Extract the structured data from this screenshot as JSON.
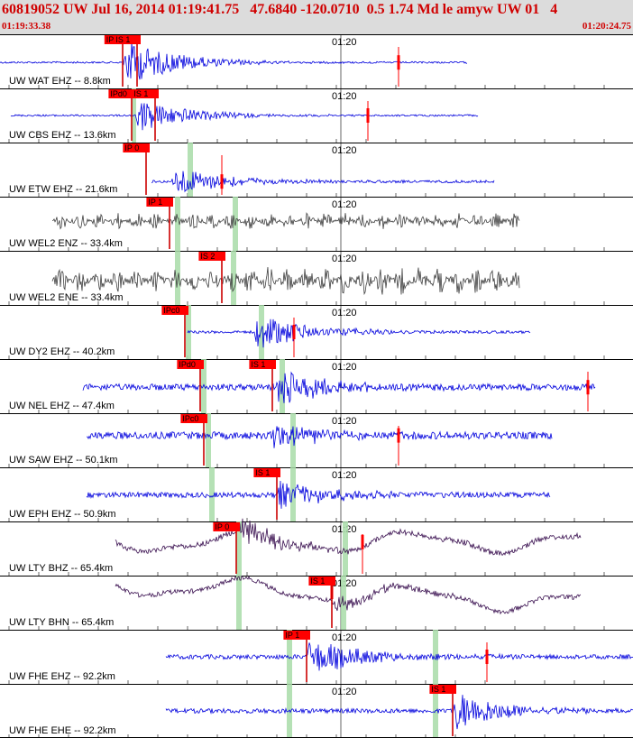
{
  "header": {
    "event_line": "60819052 UW Jul 16, 2014 01:19:41.75   47.6840 -120.0710  0.5 1.74 Md le amyw UW 01   4",
    "start_time": "01:19:33.38",
    "end_time": "01:20:24.75"
  },
  "colors": {
    "header_bg": "#dcdcdc",
    "header_text": "#d00000",
    "trace_ehz": "#0000dd",
    "trace_enz": "#404040",
    "trace_bhz": "#3a1050",
    "pick": "#ff0000",
    "window": "#a8dca8"
  },
  "chart_data": {
    "type": "line",
    "title": "",
    "x_unit": "time",
    "time_range": [
      "01:19:33.38",
      "01:20:24.75"
    ],
    "tick_label": "01:20",
    "traces": [
      {
        "label": "UW WAT EHZ -- 8.8km",
        "component": "EHZ",
        "distance_km": 8.8,
        "picks": [
          "IPc",
          "IS 1"
        ],
        "style": "ehz"
      },
      {
        "label": "UW CBS EHZ -- 13.6km",
        "component": "EHZ",
        "distance_km": 13.6,
        "picks": [
          "IPd0",
          "IS 1"
        ],
        "style": "ehz"
      },
      {
        "label": "UW ETW EHZ -- 21.6km",
        "component": "EHZ",
        "distance_km": 21.6,
        "picks": [
          "IP 0"
        ],
        "style": "ehz"
      },
      {
        "label": "UW WEL2 ENZ -- 33.4km",
        "component": "ENZ",
        "distance_km": 33.4,
        "picks": [
          "IP 1"
        ],
        "style": "enz"
      },
      {
        "label": "UW WEL2 ENE -- 33.4km",
        "component": "ENE",
        "distance_km": 33.4,
        "picks": [
          "IS 2"
        ],
        "style": "enz"
      },
      {
        "label": "UW DY2 EHZ -- 40.2km",
        "component": "EHZ",
        "distance_km": 40.2,
        "picks": [
          "IPc0"
        ],
        "style": "ehz"
      },
      {
        "label": "UW NEL EHZ -- 47.4km",
        "component": "EHZ",
        "distance_km": 47.4,
        "picks": [
          "IPd0",
          "IS 1"
        ],
        "style": "ehz"
      },
      {
        "label": "UW SAW EHZ -- 50.1km",
        "component": "EHZ",
        "distance_km": 50.1,
        "picks": [
          "IPc0"
        ],
        "style": "ehz"
      },
      {
        "label": "UW EPH EHZ -- 50.9km",
        "component": "EHZ",
        "distance_km": 50.9,
        "picks": [
          "IS 1"
        ],
        "style": "ehz"
      },
      {
        "label": "UW LTY BHZ -- 65.4km",
        "component": "BHZ",
        "distance_km": 65.4,
        "picks": [
          "IP 0"
        ],
        "style": "bhz"
      },
      {
        "label": "UW LTY BHN -- 65.4km",
        "component": "BHN",
        "distance_km": 65.4,
        "picks": [
          "IS 1"
        ],
        "style": "bhz"
      },
      {
        "label": "UW FHE EHZ -- 92.2km",
        "component": "EHZ",
        "distance_km": 92.2,
        "picks": [
          "IP 1"
        ],
        "style": "ehz"
      },
      {
        "label": "UW FHE EHE -- 92.2km",
        "component": "EHE",
        "distance_km": 92.2,
        "picks": [
          "IS 1"
        ],
        "style": "ehz"
      }
    ]
  }
}
